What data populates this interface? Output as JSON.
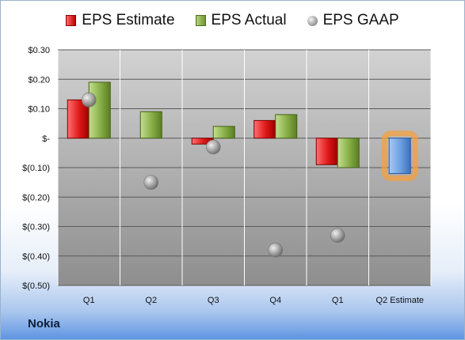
{
  "chart_data": {
    "type": "bar",
    "categories": [
      "Q1",
      "Q2",
      "Q3",
      "Q4",
      "Q1",
      "Q2 Estimate"
    ],
    "series": [
      {
        "name": "EPS Estimate",
        "values": [
          0.13,
          null,
          -0.02,
          0.06,
          -0.09,
          -0.12
        ]
      },
      {
        "name": "EPS Actual",
        "values": [
          0.19,
          0.09,
          0.04,
          0.08,
          -0.1,
          null
        ]
      },
      {
        "name": "EPS GAAP",
        "values": [
          0.13,
          -0.15,
          -0.03,
          -0.38,
          -0.33,
          null
        ]
      }
    ],
    "y_tick_labels": [
      "$0.30",
      "$0.20",
      "$0.10",
      "$-",
      "$(0.10)",
      "$(0.20)",
      "$(0.30)",
      "$(0.40)",
      "$(0.50)"
    ],
    "ylim": [
      -0.5,
      0.3
    ],
    "grid": true,
    "legend_position": "top",
    "colors": {
      "estimate": "#c00000",
      "actual": "#77a036",
      "gaap": "#9a9a9a",
      "forecast": "#5b8fd6",
      "forecast_glow": "#f5a040"
    }
  },
  "legend": {
    "estimate": "EPS Estimate",
    "actual": "EPS Actual",
    "gaap": "EPS GAAP"
  },
  "company": "Nokia"
}
